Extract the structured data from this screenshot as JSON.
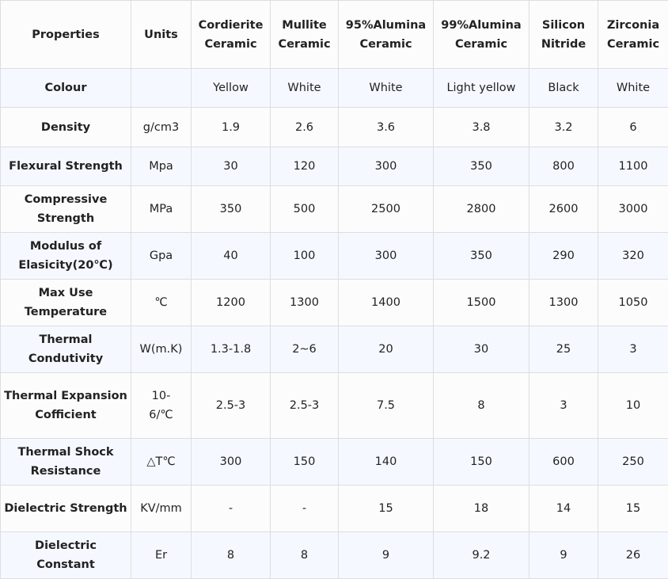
{
  "headers": [
    "Properties",
    "Units",
    "Cordierite Ceramic",
    "Mullite Ceramic",
    "95%Alumina Ceramic",
    "99%Alumina Ceramic",
    "Silicon Nitride",
    "Zirconia Ceramic"
  ],
  "rows": [
    [
      "Colour",
      "",
      "Yellow",
      "White",
      "White",
      "Light yellow",
      "Black",
      "White"
    ],
    [
      "Density",
      "g/cm3",
      "1.9",
      "2.6",
      "3.6",
      "3.8",
      "3.2",
      "6"
    ],
    [
      "Flexural Strength",
      "Mpa",
      "30",
      "120",
      "300",
      "350",
      "800",
      "1100"
    ],
    [
      "Compressive Strength",
      "MPa",
      "350",
      "500",
      "2500",
      "2800",
      "2600",
      "3000"
    ],
    [
      "Modulus of Elasicity(20℃)",
      "Gpa",
      "40",
      "100",
      "300",
      "350",
      "290",
      "320"
    ],
    [
      "Max Use Temperature",
      "℃",
      "1200",
      "1300",
      "1400",
      "1500",
      "1300",
      "1050"
    ],
    [
      "Thermal Condutivity",
      "W(m.K)",
      "1.3-1.8",
      "2~6",
      "20",
      "30",
      "25",
      "3"
    ],
    [
      "Thermal Expansion Cofficient",
      "10-6/℃",
      "2.5-3",
      "2.5-3",
      "7.5",
      "8",
      "3",
      "10"
    ],
    [
      "Thermal Shock Resistance",
      "△T℃",
      "300",
      "150",
      "140",
      "150",
      "600",
      "250"
    ],
    [
      "Dielectric Strength",
      "KV/mm",
      "-",
      "-",
      "15",
      "18",
      "14",
      "15"
    ],
    [
      "Dielectric Constant",
      "Er",
      "8",
      "8",
      "9",
      "9.2",
      "9",
      "26"
    ]
  ]
}
